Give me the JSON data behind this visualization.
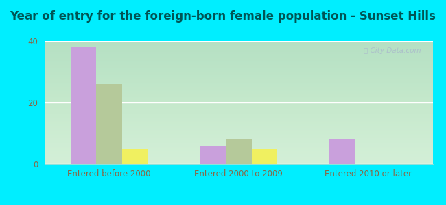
{
  "title": "Year of entry for the foreign-born female population - Sunset Hills",
  "categories": [
    "Entered before 2000",
    "Entered 2000 to 2009",
    "Entered 2010 or later"
  ],
  "series": {
    "Europe": [
      38,
      6,
      8
    ],
    "Asia": [
      26,
      8,
      0
    ],
    "Other": [
      5,
      5,
      0
    ]
  },
  "colors": {
    "Europe": "#c9a0dc",
    "Asia": "#b5c99a",
    "Other": "#f0f060"
  },
  "ylim": [
    0,
    40
  ],
  "yticks": [
    0,
    20,
    40
  ],
  "background_outer": "#00eeff",
  "background_inner_top": "#d0f0e0",
  "background_inner_bottom": "#e8faf0",
  "watermark": "City-Data.com",
  "bar_width": 0.2,
  "title_fontsize": 12,
  "legend_fontsize": 9.5,
  "tick_fontsize": 8.5,
  "title_color": "#005555",
  "tick_color": "#886644",
  "legend_color": "#886644"
}
